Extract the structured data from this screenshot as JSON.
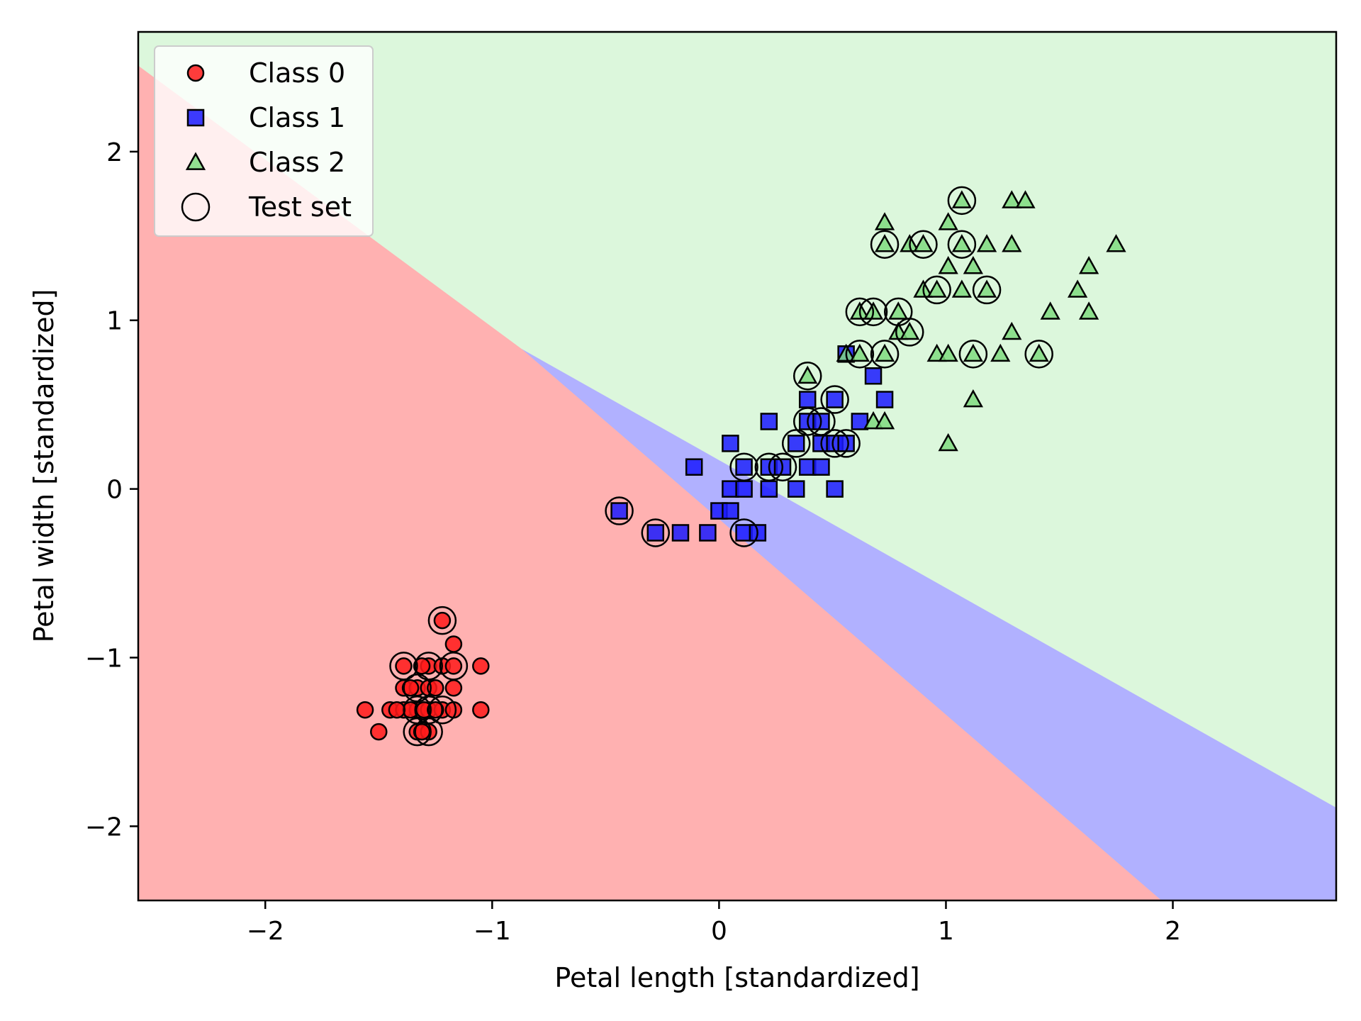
{
  "chart_data": {
    "type": "scatter",
    "title": "",
    "xlabel": "Petal length [standardized]",
    "ylabel": "Petal width [standardized]",
    "xlim": [
      -2.56,
      2.72
    ],
    "ylim": [
      -2.44,
      2.71
    ],
    "xticks": [
      -2,
      -1,
      0,
      1,
      2
    ],
    "yticks": [
      -2,
      -1,
      0,
      1,
      2
    ],
    "xtick_labels": [
      "−2",
      "−1",
      "0",
      "1",
      "2"
    ],
    "ytick_labels": [
      "−2",
      "−1",
      "0",
      "1",
      "2"
    ],
    "grid": false,
    "legend_position": "top-left",
    "decision_regions": {
      "colors": {
        "class0": "#ffb1b1",
        "class1": "#b1b1ff",
        "class2": "#dcf7dc"
      },
      "boundary_0_1": [
        [
          -2.56,
          2.51
        ],
        [
          -0.87,
          0.83
        ],
        [
          1.95,
          -2.44
        ]
      ],
      "boundary_1_2": [
        [
          -0.87,
          0.83
        ],
        [
          2.72,
          -1.89
        ]
      ]
    },
    "series": [
      {
        "name": "Class 0",
        "marker": "circle",
        "color": "#ff1a1a",
        "points": [
          [
            -1.56,
            -1.31
          ],
          [
            -1.5,
            -1.44
          ],
          [
            -1.45,
            -1.31
          ],
          [
            -1.39,
            -1.05
          ],
          [
            -1.39,
            -1.18
          ],
          [
            -1.39,
            -1.31
          ],
          [
            -1.33,
            -1.18
          ],
          [
            -1.33,
            -1.31
          ],
          [
            -1.33,
            -1.44
          ],
          [
            -1.28,
            -1.05
          ],
          [
            -1.28,
            -1.18
          ],
          [
            -1.28,
            -1.31
          ],
          [
            -1.28,
            -1.44
          ],
          [
            -1.22,
            -0.78
          ],
          [
            -1.22,
            -1.05
          ],
          [
            -1.22,
            -1.31
          ],
          [
            -1.17,
            -0.92
          ],
          [
            -1.17,
            -1.05
          ],
          [
            -1.17,
            -1.18
          ],
          [
            -1.17,
            -1.31
          ],
          [
            -1.05,
            -1.05
          ],
          [
            -1.05,
            -1.31
          ],
          [
            -1.36,
            -1.31
          ],
          [
            -1.3,
            -1.31
          ],
          [
            -1.25,
            -1.31
          ],
          [
            -1.42,
            -1.31
          ],
          [
            -1.31,
            -1.44
          ],
          [
            -1.36,
            -1.18
          ],
          [
            -1.25,
            -1.18
          ],
          [
            -1.31,
            -1.05
          ]
        ]
      },
      {
        "name": "Class 1",
        "marker": "square",
        "color": "#1a1aff",
        "points": [
          [
            -0.44,
            -0.13
          ],
          [
            -0.28,
            -0.26
          ],
          [
            -0.17,
            -0.26
          ],
          [
            -0.11,
            0.13
          ],
          [
            -0.05,
            -0.26
          ],
          [
            0,
            -0.13
          ],
          [
            0.05,
            0.27
          ],
          [
            0.05,
            0
          ],
          [
            0.05,
            -0.13
          ],
          [
            0.11,
            0.13
          ],
          [
            0.11,
            0
          ],
          [
            0.11,
            -0.26
          ],
          [
            0.17,
            -0.26
          ],
          [
            0.22,
            0.4
          ],
          [
            0.22,
            0.13
          ],
          [
            0.22,
            0
          ],
          [
            0.28,
            0.13
          ],
          [
            0.34,
            0.27
          ],
          [
            0.34,
            0
          ],
          [
            0.39,
            0.53
          ],
          [
            0.39,
            0.4
          ],
          [
            0.39,
            0.13
          ],
          [
            0.45,
            0.4
          ],
          [
            0.45,
            0.27
          ],
          [
            0.45,
            0.13
          ],
          [
            0.51,
            0.53
          ],
          [
            0.51,
            0.27
          ],
          [
            0.51,
            0
          ],
          [
            0.56,
            0.8
          ],
          [
            0.56,
            0.27
          ],
          [
            0.62,
            0.4
          ],
          [
            0.68,
            0.67
          ],
          [
            0.73,
            0.53
          ]
        ]
      },
      {
        "name": "Class 2",
        "marker": "triangle",
        "color": "#7fdb7f",
        "points": [
          [
            0.39,
            0.67
          ],
          [
            0.56,
            0.8
          ],
          [
            0.62,
            0.8
          ],
          [
            0.68,
            0.4
          ],
          [
            0.73,
            1.58
          ],
          [
            0.73,
            1.45
          ],
          [
            0.73,
            0.8
          ],
          [
            0.73,
            0.4
          ],
          [
            0.79,
            1.05
          ],
          [
            0.79,
            0.93
          ],
          [
            0.84,
            0.93
          ],
          [
            0.84,
            1.45
          ],
          [
            0.9,
            1.45
          ],
          [
            0.9,
            1.18
          ],
          [
            0.96,
            1.18
          ],
          [
            0.96,
            0.8
          ],
          [
            1.01,
            1.58
          ],
          [
            1.01,
            1.32
          ],
          [
            1.01,
            0.8
          ],
          [
            1.01,
            0.27
          ],
          [
            1.07,
            1.71
          ],
          [
            1.07,
            1.45
          ],
          [
            1.07,
            1.18
          ],
          [
            1.12,
            1.32
          ],
          [
            1.12,
            0.8
          ],
          [
            1.12,
            0.53
          ],
          [
            1.18,
            1.45
          ],
          [
            1.18,
            1.18
          ],
          [
            1.24,
            0.8
          ],
          [
            1.29,
            1.71
          ],
          [
            1.29,
            1.45
          ],
          [
            1.29,
            0.93
          ],
          [
            1.35,
            1.71
          ],
          [
            1.41,
            0.8
          ],
          [
            1.46,
            1.05
          ],
          [
            1.58,
            1.18
          ],
          [
            1.63,
            1.32
          ],
          [
            1.63,
            1.05
          ],
          [
            1.75,
            1.45
          ],
          [
            0.62,
            1.05
          ],
          [
            0.68,
            1.05
          ]
        ]
      },
      {
        "name": "Test set",
        "marker": "open-circle",
        "color": "#000000",
        "points": [
          [
            -1.39,
            -1.05
          ],
          [
            -1.33,
            -1.18
          ],
          [
            -1.33,
            -1.31
          ],
          [
            -1.33,
            -1.44
          ],
          [
            -1.28,
            -1.05
          ],
          [
            -1.28,
            -1.31
          ],
          [
            -1.28,
            -1.44
          ],
          [
            -1.22,
            -0.78
          ],
          [
            -1.22,
            -1.31
          ],
          [
            -1.17,
            -1.05
          ],
          [
            -0.44,
            -0.13
          ],
          [
            -0.28,
            -0.26
          ],
          [
            0.11,
            0.13
          ],
          [
            0.11,
            -0.26
          ],
          [
            0.22,
            0.13
          ],
          [
            0.28,
            0.13
          ],
          [
            0.34,
            0.27
          ],
          [
            0.39,
            0.4
          ],
          [
            0.45,
            0.4
          ],
          [
            0.51,
            0.53
          ],
          [
            0.51,
            0.27
          ],
          [
            0.56,
            0.27
          ],
          [
            0.39,
            0.67
          ],
          [
            0.62,
            0.8
          ],
          [
            0.73,
            1.45
          ],
          [
            0.73,
            0.8
          ],
          [
            0.62,
            1.05
          ],
          [
            0.68,
            1.05
          ],
          [
            0.79,
            1.05
          ],
          [
            0.84,
            0.93
          ],
          [
            0.9,
            1.45
          ],
          [
            0.96,
            1.18
          ],
          [
            1.07,
            1.71
          ],
          [
            1.07,
            1.45
          ],
          [
            1.12,
            0.8
          ],
          [
            1.18,
            1.18
          ],
          [
            1.41,
            0.8
          ]
        ]
      }
    ]
  }
}
